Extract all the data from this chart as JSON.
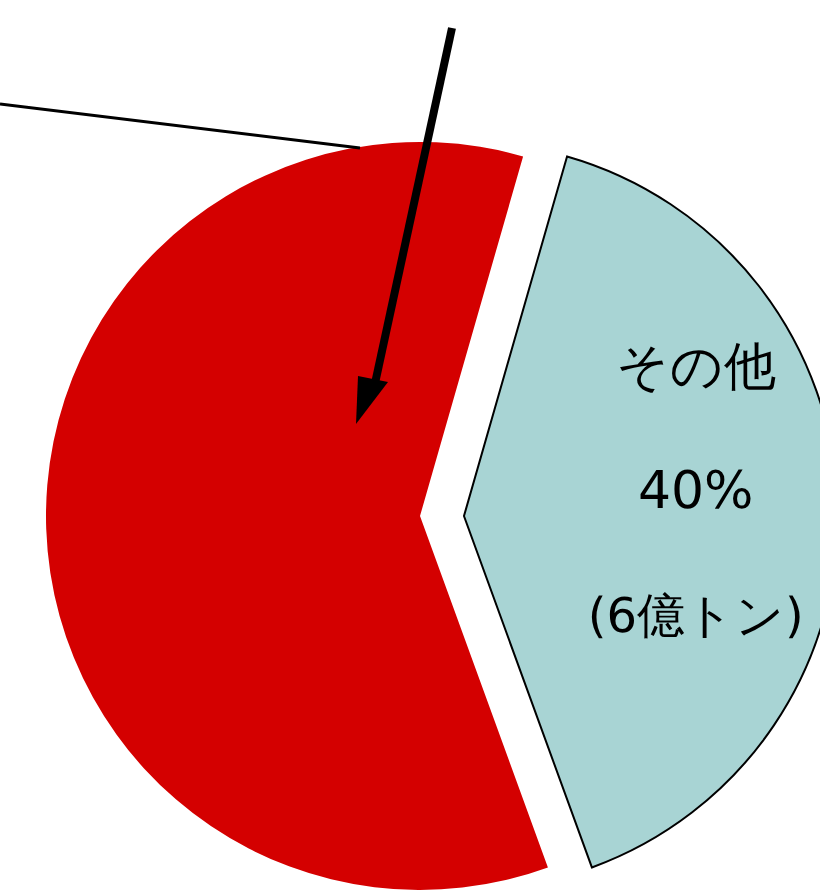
{
  "chart_data": {
    "type": "pie",
    "categories": [
      null,
      "その他"
    ],
    "values": [
      60,
      40
    ],
    "colors": [
      "#d40000",
      "#a8d4d4"
    ],
    "value_labels": [
      null,
      "40%"
    ],
    "annotations": [
      "(6億トン)"
    ]
  }
}
